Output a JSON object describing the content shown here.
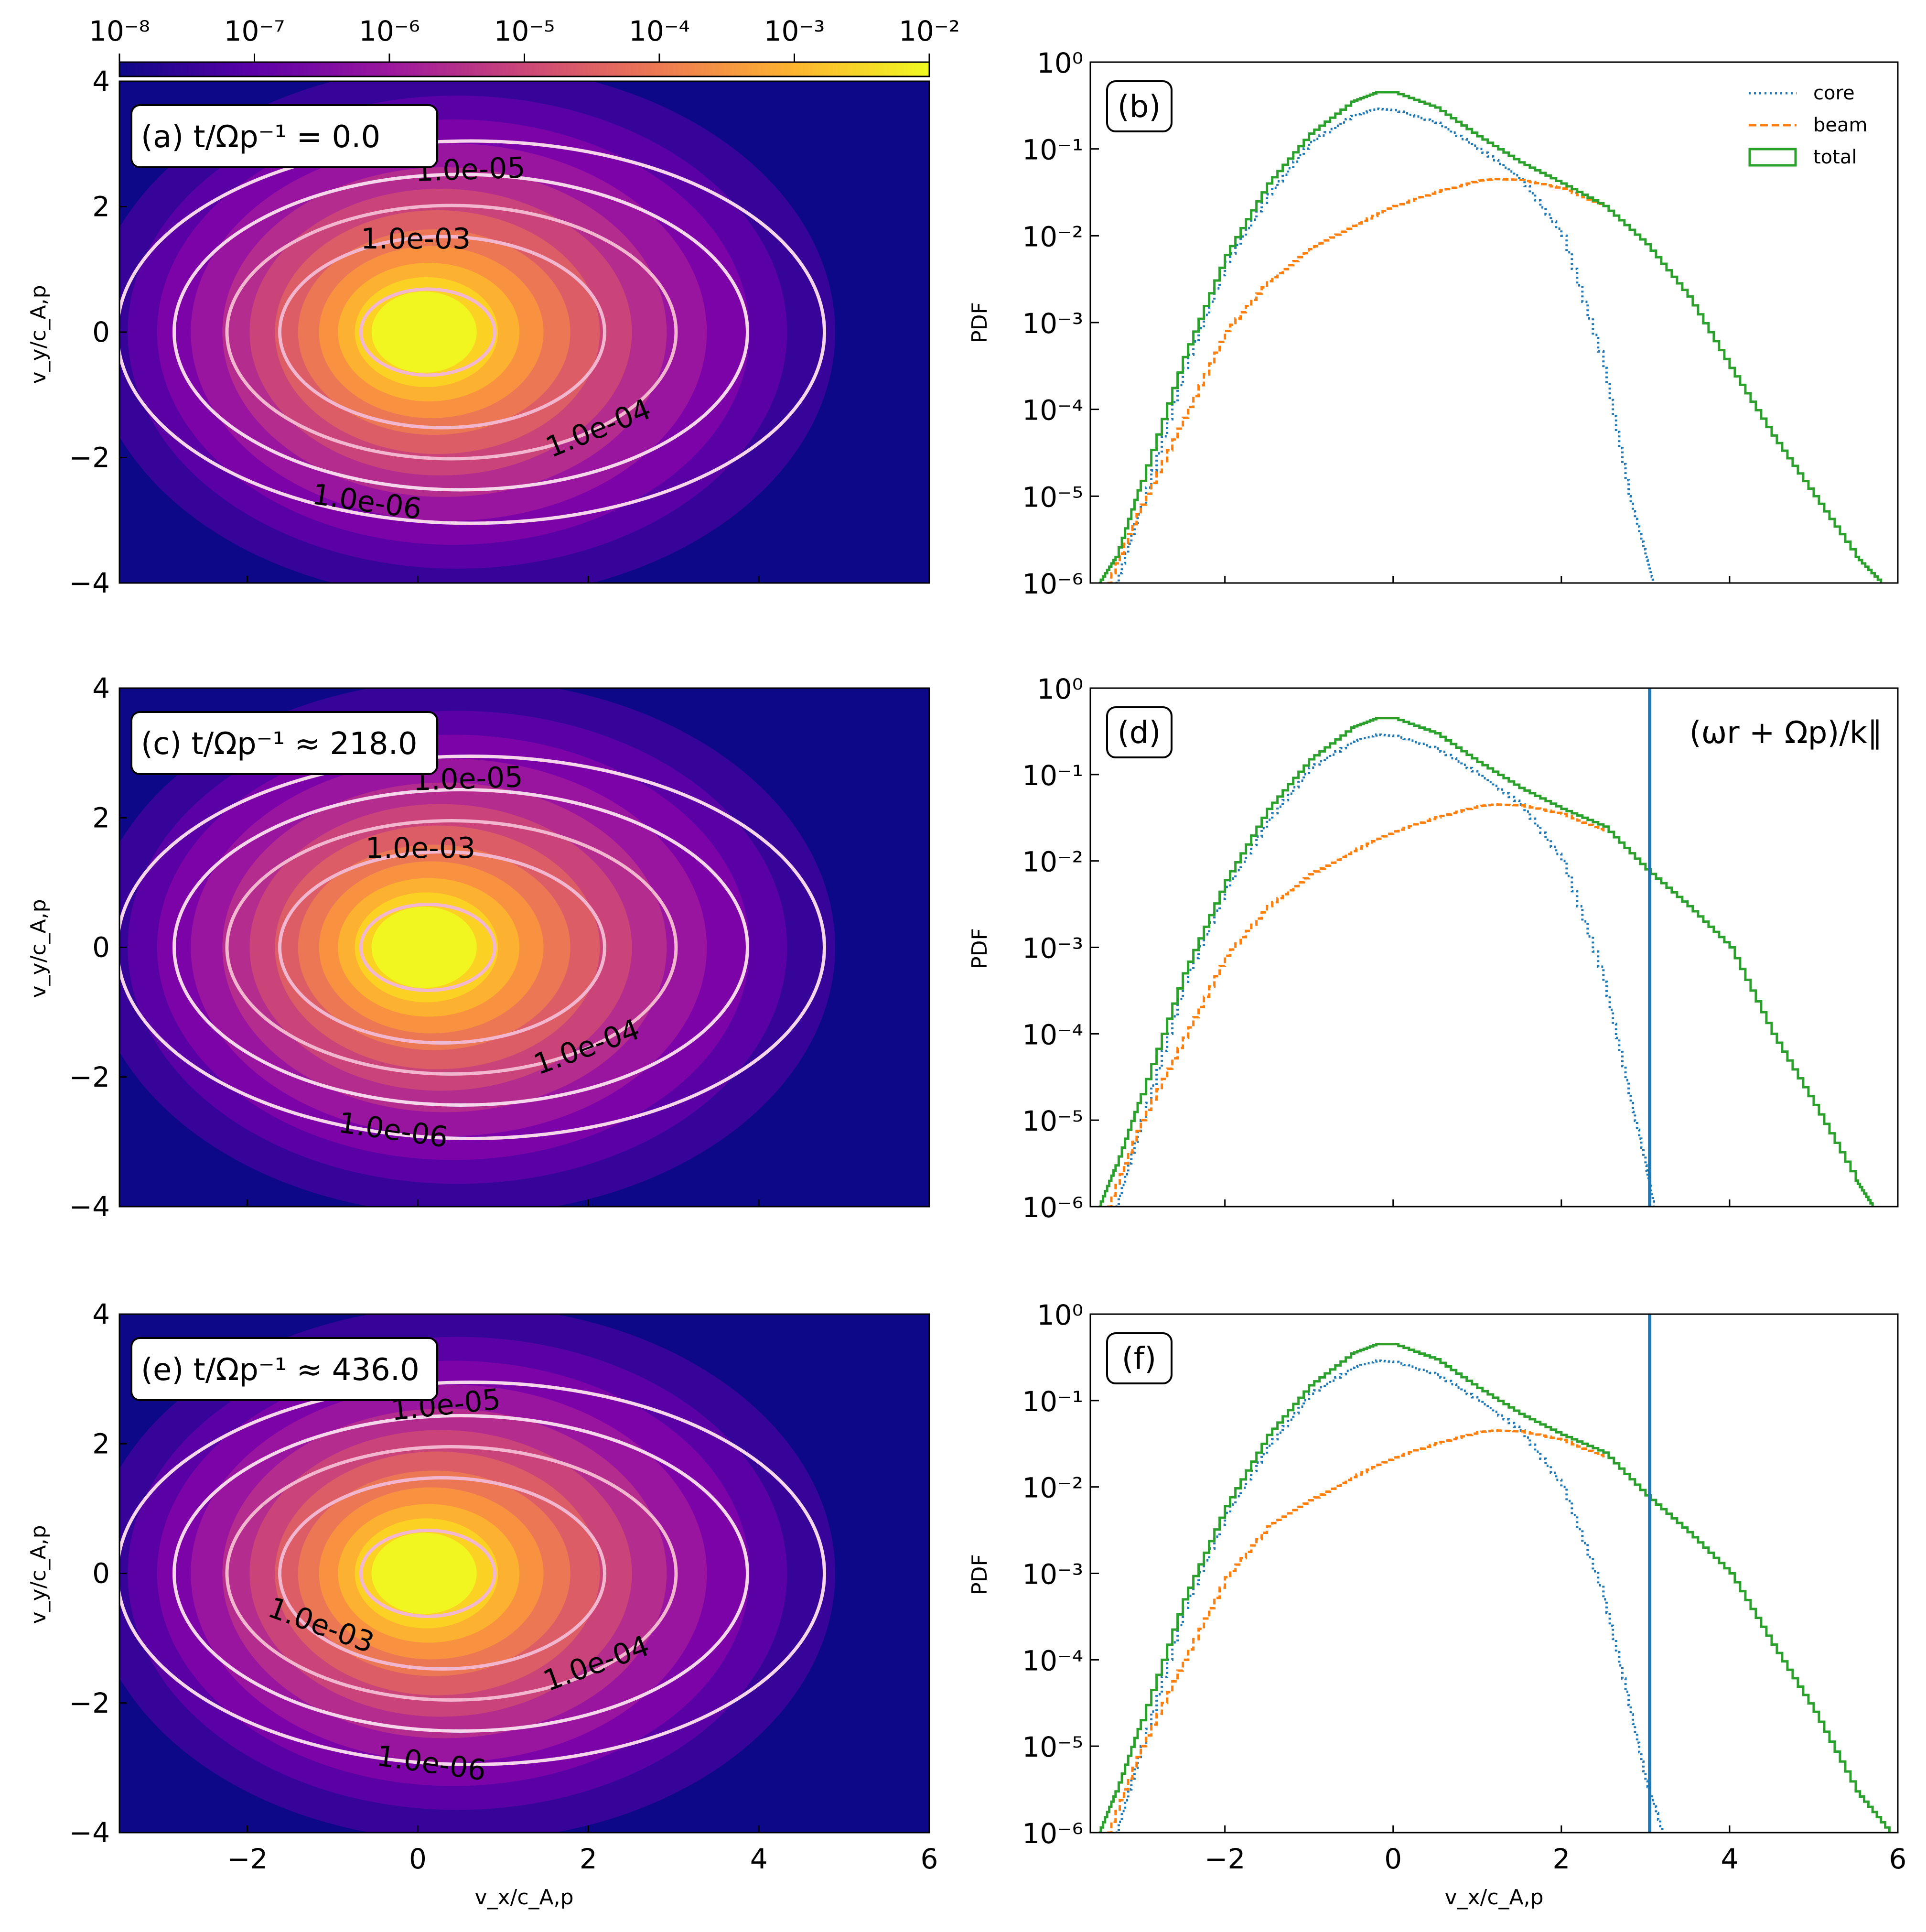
{
  "colorbar": {
    "scale": "log",
    "range": [
      1e-08,
      0.01
    ],
    "tick_labels": [
      "10⁻⁸",
      "10⁻⁷",
      "10⁻⁶",
      "10⁻⁵",
      "10⁻⁴",
      "10⁻³",
      "10⁻²"
    ],
    "colors": [
      "#0d0887",
      "#5c01a6",
      "#9c179e",
      "#cc4778",
      "#ed7953",
      "#fdb42f",
      "#f0f921"
    ]
  },
  "contour_colors": {
    "outer": "#f6d6ea",
    "inner": "#f2b6cf"
  },
  "x_ticks": [
    "−2",
    "0",
    "2",
    "4",
    "6"
  ],
  "y_ticks_left": [
    "−4",
    "−2",
    "0",
    "2",
    "4"
  ],
  "y_ticks_right": [
    "10⁻⁶",
    "10⁻⁵",
    "10⁻⁴",
    "10⁻³",
    "10⁻²",
    "10⁻¹",
    "10⁰"
  ],
  "labels": {
    "ylabel_left": "v_y/c_A,p",
    "ylabel_right": "PDF",
    "xlabel": "v_x/c_A,p",
    "resonance": "(ωr + Ωp)/k∥"
  },
  "legend": {
    "core": "core",
    "beam": "beam",
    "total": "total"
  },
  "chart_data": [
    {
      "type": "heatmap",
      "panel": "(a)",
      "annotation": "t/Ωp⁻¹ = 0.0",
      "xlim": [
        -3.5,
        6
      ],
      "ylim": [
        -4,
        4
      ],
      "distribution_peak": [
        0.0,
        0.0
      ],
      "contours": [
        {
          "level": "1.0e-06",
          "label": "1.0e-06"
        },
        {
          "level": "1.0e-05",
          "label": "1.0e-05"
        },
        {
          "level": "1.0e-04",
          "label": "1.0e-04"
        },
        {
          "level": "1.0e-03",
          "label": "1.0e-03"
        },
        {
          "level": "1.0e-02",
          "label": ""
        }
      ]
    },
    {
      "type": "line",
      "panel": "(b)",
      "yscale": "log",
      "xlim": [
        -3.6,
        6
      ],
      "ylim": [
        1e-06,
        1
      ],
      "series": [
        {
          "name": "core",
          "color": "#1f77b4",
          "style": "dotted",
          "x": [
            -3.3,
            -3.0,
            -2.5,
            -2.0,
            -1.5,
            -1.0,
            -0.5,
            -0.2,
            0.0,
            0.5,
            1.0,
            1.5,
            2.0,
            2.5,
            2.8,
            3.0,
            3.1
          ],
          "y": [
            1e-06,
            8e-06,
            0.0003,
            0.005,
            0.03,
            0.12,
            0.24,
            0.29,
            0.28,
            0.2,
            0.1,
            0.045,
            0.01,
            0.0003,
            1e-05,
            2e-06,
            1e-06
          ]
        },
        {
          "name": "beam",
          "color": "#ff7f0e",
          "style": "dashed",
          "x": [
            -3.4,
            -3.0,
            -2.5,
            -2.0,
            -1.5,
            -1.0,
            -0.5,
            0.0,
            0.5,
            1.0,
            1.2,
            1.5,
            2.0,
            2.5
          ],
          "y": [
            1e-06,
            8e-06,
            8e-05,
            0.0008,
            0.003,
            0.007,
            0.013,
            0.022,
            0.032,
            0.043,
            0.045,
            0.044,
            0.035,
            0.022
          ]
        },
        {
          "name": "total",
          "color": "#2ca02c",
          "style": "solid",
          "x": [
            -3.5,
            -3.3,
            -3.0,
            -2.5,
            -2.0,
            -1.5,
            -1.0,
            -0.5,
            -0.2,
            0.0,
            0.5,
            1.0,
            1.5,
            2.0,
            2.5,
            3.0,
            3.5,
            4.0,
            4.5,
            5.0,
            5.5,
            5.8
          ],
          "y": [
            1e-06,
            2e-06,
            1.5e-05,
            0.0004,
            0.006,
            0.04,
            0.15,
            0.35,
            0.45,
            0.45,
            0.3,
            0.14,
            0.07,
            0.04,
            0.022,
            0.008,
            0.002,
            0.0003,
            5e-05,
            1e-05,
            2e-06,
            1e-06
          ]
        }
      ]
    },
    {
      "type": "heatmap",
      "panel": "(c)",
      "annotation": "t/Ωp⁻¹ ≈ 218.0",
      "xlim": [
        -3.5,
        6
      ],
      "ylim": [
        -4,
        4
      ],
      "distribution_peak": [
        0.0,
        0.0
      ],
      "contours": [
        {
          "level": "1.0e-06",
          "label": "1.0e-06"
        },
        {
          "level": "1.0e-05",
          "label": "1.0e-05"
        },
        {
          "level": "1.0e-04",
          "label": "1.0e-04"
        },
        {
          "level": "1.0e-03",
          "label": "1.0e-03"
        },
        {
          "level": "1.0e-02",
          "label": ""
        }
      ]
    },
    {
      "type": "line",
      "panel": "(d)",
      "yscale": "log",
      "xlim": [
        -3.6,
        6
      ],
      "ylim": [
        1e-06,
        1
      ],
      "vline": 3.05,
      "series": [
        {
          "name": "core",
          "color": "#1f77b4",
          "style": "dotted",
          "x": [
            -3.3,
            -3.0,
            -2.5,
            -2.0,
            -1.5,
            -1.0,
            -0.5,
            -0.2,
            0.0,
            0.5,
            1.0,
            1.5,
            2.0,
            2.5,
            2.8,
            3.0,
            3.1
          ],
          "y": [
            1e-06,
            1e-05,
            0.0004,
            0.005,
            0.03,
            0.12,
            0.24,
            0.29,
            0.28,
            0.2,
            0.1,
            0.045,
            0.01,
            0.0004,
            2e-05,
            3e-06,
            1e-06
          ]
        },
        {
          "name": "beam",
          "color": "#ff7f0e",
          "style": "dashed",
          "x": [
            -3.4,
            -3.0,
            -2.5,
            -2.0,
            -1.5,
            -1.0,
            -0.5,
            0.0,
            0.5,
            1.0,
            1.2,
            1.5,
            2.0,
            2.5
          ],
          "y": [
            1e-06,
            1e-05,
            9e-05,
            0.0008,
            0.003,
            0.007,
            0.013,
            0.022,
            0.032,
            0.043,
            0.045,
            0.044,
            0.035,
            0.022
          ]
        },
        {
          "name": "total",
          "color": "#2ca02c",
          "style": "solid",
          "x": [
            -3.5,
            -3.3,
            -3.0,
            -2.5,
            -2.0,
            -1.5,
            -1.0,
            -0.5,
            -0.2,
            0.0,
            0.5,
            1.0,
            1.5,
            2.0,
            2.5,
            3.0,
            3.5,
            4.0,
            4.5,
            5.0,
            5.5,
            5.7
          ],
          "y": [
            1e-06,
            3e-06,
            2e-05,
            0.0005,
            0.006,
            0.04,
            0.15,
            0.35,
            0.45,
            0.45,
            0.3,
            0.14,
            0.07,
            0.04,
            0.025,
            0.008,
            0.003,
            0.001,
            0.0001,
            1.5e-05,
            2e-06,
            1e-06
          ]
        }
      ]
    },
    {
      "type": "heatmap",
      "panel": "(e)",
      "annotation": "t/Ωp⁻¹ ≈ 436.0",
      "xlim": [
        -3.5,
        6
      ],
      "ylim": [
        -4,
        4
      ],
      "distribution_peak": [
        0.0,
        0.0
      ],
      "contours": [
        {
          "level": "1.0e-06",
          "label": "1.0e-06"
        },
        {
          "level": "1.0e-05",
          "label": "1.0e-05"
        },
        {
          "level": "1.0e-04",
          "label": "1.0e-04"
        },
        {
          "level": "1.0e-03",
          "label": "1.0e-03"
        },
        {
          "level": "1.0e-02",
          "label": ""
        }
      ]
    },
    {
      "type": "line",
      "panel": "(f)",
      "yscale": "log",
      "xlim": [
        -3.6,
        6
      ],
      "ylim": [
        1e-06,
        1
      ],
      "vline": 3.05,
      "series": [
        {
          "name": "core",
          "color": "#1f77b4",
          "style": "dotted",
          "x": [
            -3.3,
            -3.0,
            -2.5,
            -2.0,
            -1.5,
            -1.0,
            -0.5,
            -0.2,
            0.0,
            0.5,
            1.0,
            1.5,
            2.0,
            2.5,
            2.8,
            3.0,
            3.2
          ],
          "y": [
            1e-06,
            1e-05,
            0.0004,
            0.005,
            0.03,
            0.12,
            0.24,
            0.29,
            0.28,
            0.2,
            0.1,
            0.045,
            0.01,
            0.0005,
            3e-05,
            4e-06,
            1e-06
          ]
        },
        {
          "name": "beam",
          "color": "#ff7f0e",
          "style": "dashed",
          "x": [
            -3.4,
            -3.0,
            -2.5,
            -2.0,
            -1.5,
            -1.0,
            -0.5,
            0.0,
            0.5,
            1.0,
            1.2,
            1.5,
            2.0,
            2.5
          ],
          "y": [
            1e-06,
            1e-05,
            0.0001,
            0.0009,
            0.0035,
            0.007,
            0.013,
            0.022,
            0.032,
            0.043,
            0.045,
            0.044,
            0.035,
            0.022
          ]
        },
        {
          "name": "total",
          "color": "#2ca02c",
          "style": "solid",
          "x": [
            -3.5,
            -3.3,
            -3.0,
            -2.5,
            -2.0,
            -1.5,
            -1.0,
            -0.5,
            -0.2,
            0.0,
            0.5,
            1.0,
            1.5,
            2.0,
            2.5,
            3.0,
            3.5,
            4.0,
            4.5,
            5.0,
            5.5,
            5.9
          ],
          "y": [
            1e-06,
            3e-06,
            2e-05,
            0.0005,
            0.006,
            0.04,
            0.15,
            0.35,
            0.45,
            0.45,
            0.3,
            0.14,
            0.07,
            0.04,
            0.025,
            0.008,
            0.003,
            0.001,
            0.00015,
            2.5e-05,
            3e-06,
            1e-06
          ]
        }
      ]
    }
  ]
}
